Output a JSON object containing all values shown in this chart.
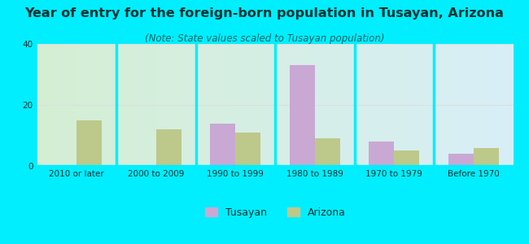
{
  "title": "Year of entry for the foreign-born population in Tusayan, Arizona",
  "subtitle": "(Note: State values scaled to Tusayan population)",
  "categories": [
    "2010 or later",
    "2000 to 2009",
    "1990 to 1999",
    "1980 to 1989",
    "1970 to 1979",
    "Before 1970"
  ],
  "tusayan_values": [
    0,
    0,
    14,
    33,
    8,
    4
  ],
  "arizona_values": [
    15,
    12,
    11,
    9,
    5,
    6
  ],
  "tusayan_color": "#c9a8d4",
  "arizona_color": "#bdc98a",
  "background_outer": "#00eeff",
  "background_inner_left": "#d4efd4",
  "background_inner_right": "#d8eef8",
  "ylim": [
    0,
    40
  ],
  "yticks": [
    0,
    20,
    40
  ],
  "bar_width": 0.32,
  "title_fontsize": 11.5,
  "subtitle_fontsize": 8.5,
  "tick_fontsize": 7.5,
  "legend_fontsize": 9,
  "title_color": "#003333",
  "subtitle_color": "#006666",
  "tick_color": "#003333",
  "grid_color": "#dddddd",
  "separator_color": "#00eeff"
}
